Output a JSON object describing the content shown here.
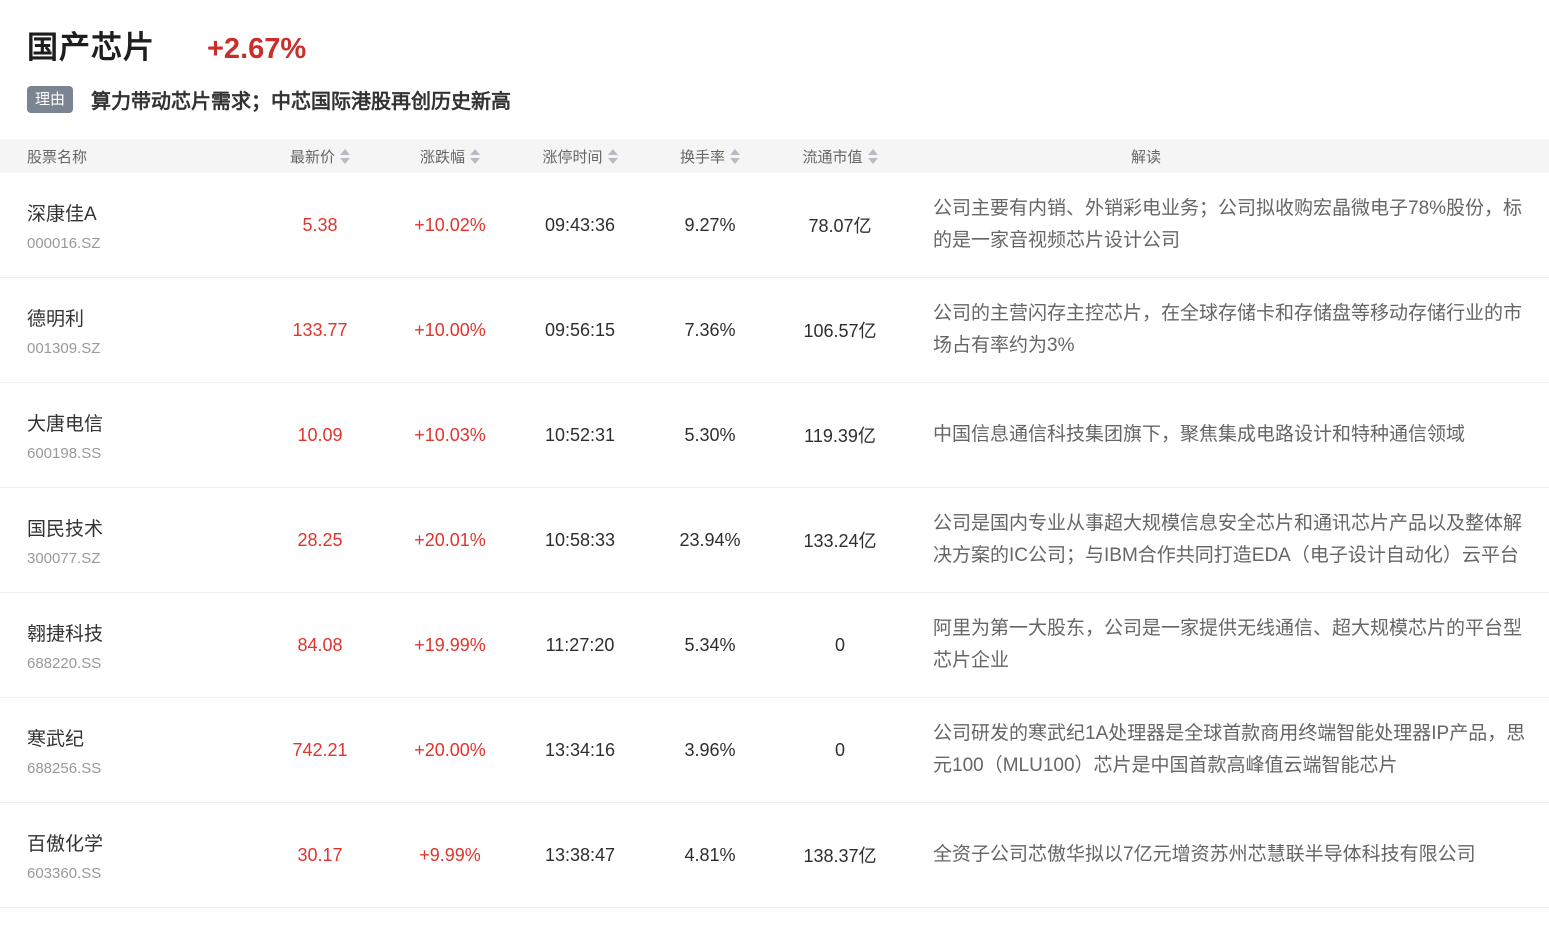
{
  "header": {
    "sector_name": "国产芯片",
    "sector_change": "+2.67%",
    "reason_badge": "理由",
    "reason_text": "算力带动芯片需求；中芯国际港股再创历史新高"
  },
  "table": {
    "columns": [
      {
        "label": "股票名称",
        "sortable": false
      },
      {
        "label": "最新价",
        "sortable": true
      },
      {
        "label": "涨跌幅",
        "sortable": true
      },
      {
        "label": "涨停时间",
        "sortable": true
      },
      {
        "label": "换手率",
        "sortable": true
      },
      {
        "label": "流通市值",
        "sortable": true
      },
      {
        "label": "解读",
        "sortable": false
      }
    ],
    "rows": [
      {
        "name": "深康佳A",
        "code": "000016.SZ",
        "price": "5.38",
        "change": "+10.02%",
        "limit_up_time": "09:43:36",
        "turnover": "9.27%",
        "market_cap": "78.07亿",
        "analysis": "公司主要有内销、外销彩电业务；公司拟收购宏晶微电子78%股份，标的是一家音视频芯片设计公司"
      },
      {
        "name": "德明利",
        "code": "001309.SZ",
        "price": "133.77",
        "change": "+10.00%",
        "limit_up_time": "09:56:15",
        "turnover": "7.36%",
        "market_cap": "106.57亿",
        "analysis": "公司的主营闪存主控芯片，在全球存储卡和存储盘等移动存储行业的市场占有率约为3%"
      },
      {
        "name": "大唐电信",
        "code": "600198.SS",
        "price": "10.09",
        "change": "+10.03%",
        "limit_up_time": "10:52:31",
        "turnover": "5.30%",
        "market_cap": "119.39亿",
        "analysis": "中国信息通信科技集团旗下，聚焦集成电路设计和特种通信领域"
      },
      {
        "name": "国民技术",
        "code": "300077.SZ",
        "price": "28.25",
        "change": "+20.01%",
        "limit_up_time": "10:58:33",
        "turnover": "23.94%",
        "market_cap": "133.24亿",
        "analysis": "公司是国内专业从事超大规模信息安全芯片和通讯芯片产品以及整体解决方案的IC公司；与IBM合作共同打造EDA（电子设计自动化）云平台"
      },
      {
        "name": "翱捷科技",
        "code": "688220.SS",
        "price": "84.08",
        "change": "+19.99%",
        "limit_up_time": "11:27:20",
        "turnover": "5.34%",
        "market_cap": "0",
        "analysis": "阿里为第一大股东，公司是一家提供无线通信、超大规模芯片的平台型芯片企业"
      },
      {
        "name": "寒武纪",
        "code": "688256.SS",
        "price": "742.21",
        "change": "+20.00%",
        "limit_up_time": "13:34:16",
        "turnover": "3.96%",
        "market_cap": "0",
        "analysis": "公司研发的寒武纪1A处理器是全球首款商用终端智能处理器IP产品，思元100（MLU100）芯片是中国首款高峰值云端智能芯片"
      },
      {
        "name": "百傲化学",
        "code": "603360.SS",
        "price": "30.17",
        "change": "+9.99%",
        "limit_up_time": "13:38:47",
        "turnover": "4.81%",
        "market_cap": "138.37亿",
        "analysis": "全资子公司芯傲华拟以7亿元增资苏州芯慧联半导体科技有限公司"
      }
    ]
  },
  "colors": {
    "red_title": "#c9302c",
    "red_table": "#df352e",
    "badge_bg": "#7b8492",
    "header_bg": "#f5f5f6"
  }
}
